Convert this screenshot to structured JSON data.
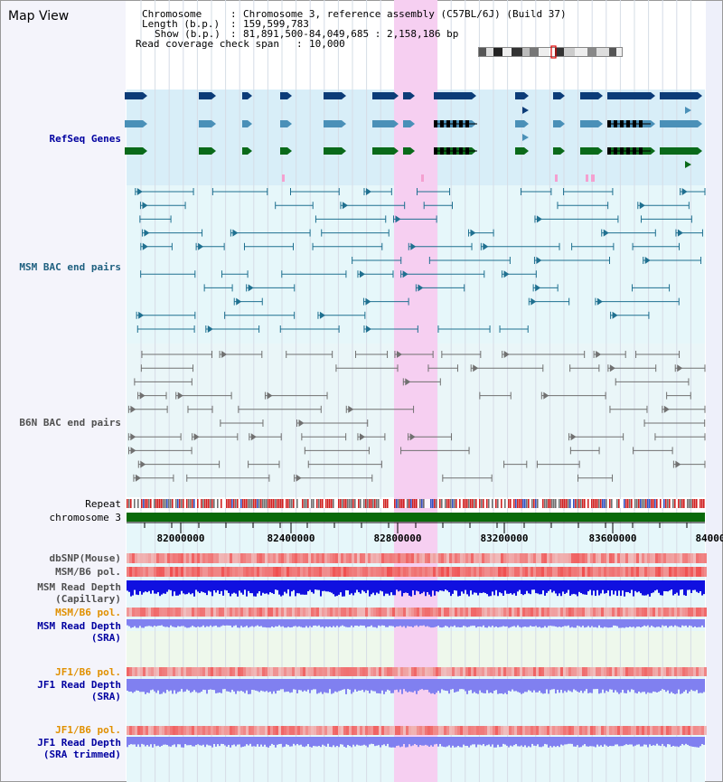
{
  "title": "Map View",
  "info": {
    "chromosome_key": "Chromosome",
    "chromosome_val": "Chromosome 3, reference assembly (C57BL/6J) (Build 37)",
    "length_key": "Length (b.p.)",
    "length_val": "159,599,783",
    "show_key": "Show (b.p.)",
    "show_val": "81,891,500-84,049,685 : 2,158,186 bp",
    "span_key": "Read coverage check span",
    "span_val": "10,000"
  },
  "tracks": {
    "refseq": "RefSeq Genes",
    "msm_bac": "MSM BAC end pairs",
    "b6n_bac": "B6N BAC end pairs",
    "repeat": "Repeat",
    "chromosome": "chromosome 3",
    "dbsnp": "dbSNP(Mouse)",
    "msm_b6_pol_1": "MSM/B6 pol.",
    "msm_depth_cap_1": "MSM Read Depth",
    "msm_depth_cap_2": "(Capillary)",
    "msm_b6_pol_2": "MSM/B6 pol.",
    "msm_depth_sra_1": "MSM Read Depth",
    "msm_depth_sra_2": "(SRA)",
    "jf1_b6_pol_1": "JF1/B6 pol.",
    "jf1_depth_sra_1": "JF1 Read Depth",
    "jf1_depth_sra_2": "(SRA)",
    "jf1_b6_pol_2": "JF1/B6 pol.",
    "jf1_depth_trim_1": "JF1 Read Depth",
    "jf1_depth_trim_2": "(SRA trimmed)"
  },
  "axis": {
    "ticks": [
      "82000000",
      "82400000",
      "82800000",
      "83200000",
      "83600000",
      "84000"
    ]
  },
  "colors": {
    "refseq_bg": "#d8eef8",
    "msm_bg": "#e6f7fa",
    "highlight": "#f6d8f2",
    "refseq_dark": "#0c3c78",
    "refseq_mid": "#4a90b8",
    "refseq_green": "#0a6a1a",
    "msm_line": "#1f7090",
    "b6n_line": "#707070",
    "chrom": "#0a6a0a",
    "pol": "#e84a4a",
    "depth_dark": "#1010e0",
    "depth_light": "#8080f0",
    "label_blue": "#0000a0",
    "label_orange": "#e09000"
  }
}
